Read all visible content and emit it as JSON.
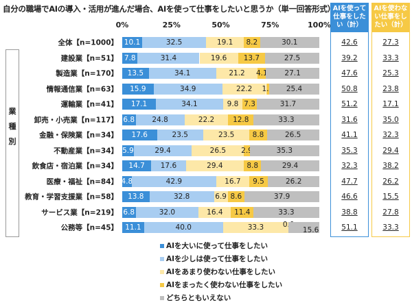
{
  "chart_data": {
    "type": "bar",
    "orientation": "horizontal-stacked-100",
    "title": "自分の職場でAIの導入・活用が進んだ場合、AIを使って仕事をしたいと思うか（単一回答形式）",
    "xticks": [
      "0%",
      "25%",
      "50%",
      "75%",
      "100%"
    ],
    "xlim": [
      0,
      100
    ],
    "legend_position": "bottom",
    "group_label": "業種別",
    "categories": [
      "全体【n=1000】",
      "建設業【n=51】",
      "製造業【n=170】",
      "情報通信業【n=63】",
      "運輸業【n=41】",
      "卸売・小売業【n=117】",
      "金融・保険業【n=34】",
      "不動産業【n=34】",
      "飲食店・宿泊業【n=34】",
      "医療・福祉【n=84】",
      "教育・学習支援業【n=58】",
      "サービス業【n=219】",
      "公務等【n=45】"
    ],
    "series": [
      {
        "name": "AIを大いに使って仕事をしたい",
        "color": "#3b8fd8",
        "values": [
          10.1,
          7.8,
          13.5,
          15.9,
          17.1,
          6.8,
          17.6,
          5.9,
          14.7,
          4.8,
          13.8,
          6.8,
          11.1
        ]
      },
      {
        "name": "AIを少しは使って仕事をしたい",
        "color": "#a8cdf1",
        "values": [
          32.5,
          31.4,
          34.1,
          34.9,
          34.1,
          24.8,
          23.5,
          29.4,
          17.6,
          42.9,
          32.8,
          32.0,
          40.0
        ]
      },
      {
        "name": "AIをあまり使わない仕事をしたい",
        "color": "#fde8a8",
        "values": [
          19.1,
          19.6,
          21.2,
          22.2,
          9.8,
          22.2,
          23.5,
          26.5,
          29.4,
          16.7,
          6.9,
          16.4,
          33.3
        ]
      },
      {
        "name": "AIをまったく使わない仕事をしたい",
        "color": "#f6c945",
        "values": [
          8.2,
          13.7,
          4.1,
          1.6,
          7.3,
          12.8,
          8.8,
          2.9,
          8.8,
          9.5,
          8.6,
          11.4,
          0.0
        ]
      },
      {
        "name": "どちらともいえない",
        "color": "#bfbfbf",
        "values": [
          30.1,
          27.5,
          27.1,
          25.4,
          31.7,
          33.3,
          26.5,
          35.3,
          29.4,
          26.2,
          37.9,
          33.3,
          15.6
        ]
      }
    ],
    "summary_columns": [
      {
        "header": "AIを使って仕事をしたい（計）",
        "color": "#3b8fd8",
        "values": [
          "42.6",
          "39.2",
          "47.6",
          "50.8",
          "51.2",
          "31.6",
          "41.1",
          "35.3",
          "32.3",
          "47.7",
          "46.6",
          "38.8",
          "51.1"
        ]
      },
      {
        "header": "AIを使わない仕事をしたい（計）",
        "color": "#f6c945",
        "values": [
          "27.3",
          "33.3",
          "25.3",
          "23.8",
          "17.1",
          "35.0",
          "32.3",
          "29.4",
          "38.2",
          "26.2",
          "15.5",
          "27.8",
          "33.3"
        ]
      }
    ]
  }
}
